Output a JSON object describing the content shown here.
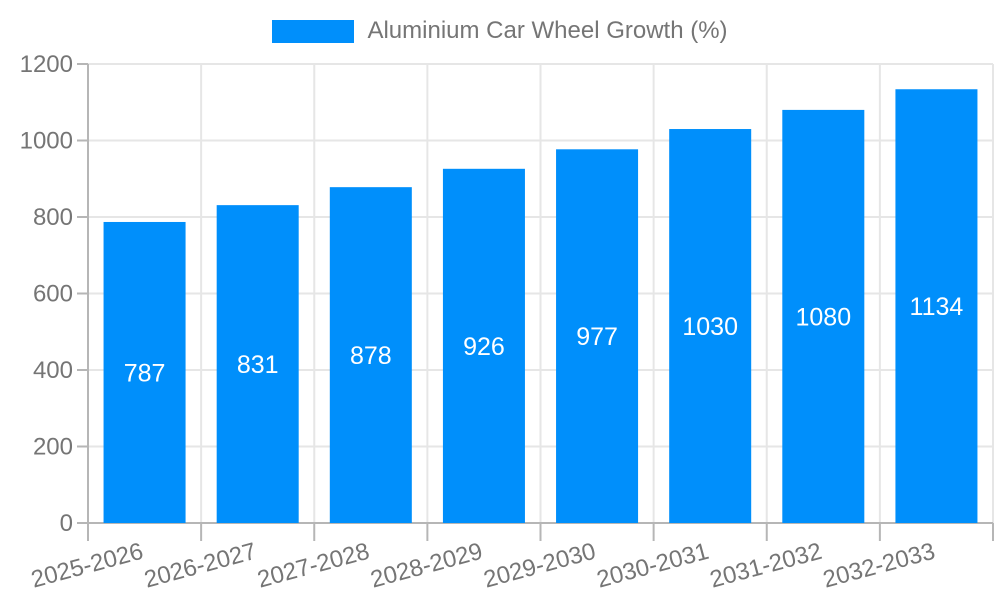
{
  "legend": {
    "label": "Aluminium Car Wheel Growth (%)",
    "swatch_color": "#008FFB"
  },
  "chart_data": {
    "type": "bar",
    "title": "Aluminium Car Wheel Growth (%)",
    "categories": [
      "2025-2026",
      "2026-2027",
      "2027-2028",
      "2028-2029",
      "2029-2030",
      "2030-2031",
      "2031-2032",
      "2032-2033"
    ],
    "values": [
      787,
      831,
      878,
      926,
      977,
      1030,
      1080,
      1134
    ],
    "xlabel": "",
    "ylabel": "",
    "ylim": [
      0,
      1200
    ],
    "yticks": [
      0,
      200,
      400,
      600,
      800,
      1000,
      1200
    ],
    "grid": true,
    "legend_position": "top-center",
    "value_labels_inside": true,
    "x_label_rotation": -15,
    "bar_color": "#008FFB",
    "value_label_color": "#FFFFFF",
    "axis_text_color": "#757575",
    "gridline_color": "#E6E6E6",
    "axis_line_color": "#B6B6B6"
  }
}
